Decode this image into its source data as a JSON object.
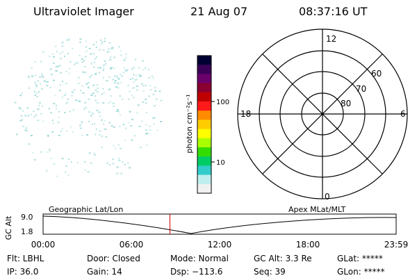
{
  "header": {
    "title": "Ultraviolet Imager",
    "date": "21 Aug 07",
    "time": "08:37:16 UT"
  },
  "colorbar": {
    "label": "photon cm⁻²s⁻¹",
    "ticks": [
      "100",
      "10"
    ],
    "colors": [
      "#000033",
      "#3a0058",
      "#6b006b",
      "#8a0030",
      "#c00000",
      "#ff1a1a",
      "#ff8c00",
      "#ffcc00",
      "#ffff00",
      "#aaff00",
      "#33dd00",
      "#00cc66",
      "#33cccc",
      "#bfeeee",
      "#f0f0f0"
    ]
  },
  "polar": {
    "mlt_labels": {
      "top": "12",
      "left": "18",
      "right": "6",
      "bottom": "0"
    },
    "lat_labels": [
      "60",
      "70",
      "80"
    ]
  },
  "timeline": {
    "ylabel": "GC Alt",
    "yticks": [
      "9.0",
      "1.8"
    ],
    "left_label": "Geographic Lat/Lon",
    "right_label": "Apex MLat/MLT",
    "xticks": [
      "00:00",
      "06:00",
      "12:00",
      "18:00",
      "23:59"
    ],
    "marker_hour": 8.62,
    "marker_color": "#cc0000"
  },
  "info": {
    "row1": [
      "Flt: LBHL",
      "Door: Closed",
      "Mode: Normal",
      "GC Alt: 3.3 Re",
      "GLat: *****"
    ],
    "row2": [
      "IP: 36.0",
      "Gain: 14",
      "Dsp: −113.6",
      "Seq: 39",
      "GLon: *****"
    ]
  },
  "colors": {
    "speckle": "#9fd9d9",
    "axis": "#000000"
  }
}
